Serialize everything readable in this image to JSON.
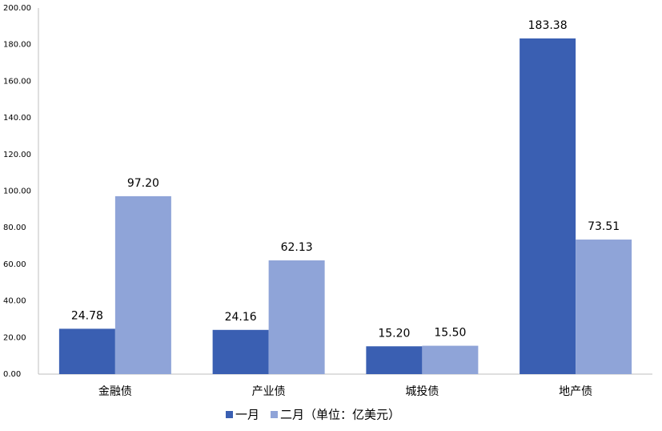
{
  "chart_data": {
    "type": "bar",
    "categories": [
      "金融债",
      "产业债",
      "城投债",
      "地产债"
    ],
    "series": [
      {
        "name": "一月",
        "color": "#3a5fb2",
        "values": [
          24.78,
          24.16,
          15.2,
          183.38
        ],
        "value_labels": [
          "24.78",
          "24.16",
          "15.20",
          "183.38"
        ]
      },
      {
        "name": "二月（单位：亿美元）",
        "color": "#8fa4d8",
        "values": [
          97.2,
          62.13,
          15.5,
          73.51
        ],
        "value_labels": [
          "97.20",
          "62.13",
          "15.50",
          "73.51"
        ]
      }
    ],
    "ylim": [
      0,
      200
    ],
    "yticks": [
      {
        "value": 0,
        "label": "0.00"
      },
      {
        "value": 20,
        "label": "20.00"
      },
      {
        "value": 40,
        "label": "40.00"
      },
      {
        "value": 60,
        "label": "60.00"
      },
      {
        "value": 80,
        "label": "80.00"
      },
      {
        "value": 100,
        "label": "100.00"
      },
      {
        "value": 120,
        "label": "120.00"
      },
      {
        "value": 140,
        "label": "140.00"
      },
      {
        "value": 160,
        "label": "160.00"
      },
      {
        "value": 180,
        "label": "180.00"
      },
      {
        "value": 200,
        "label": "200.00"
      }
    ],
    "grid": false
  }
}
